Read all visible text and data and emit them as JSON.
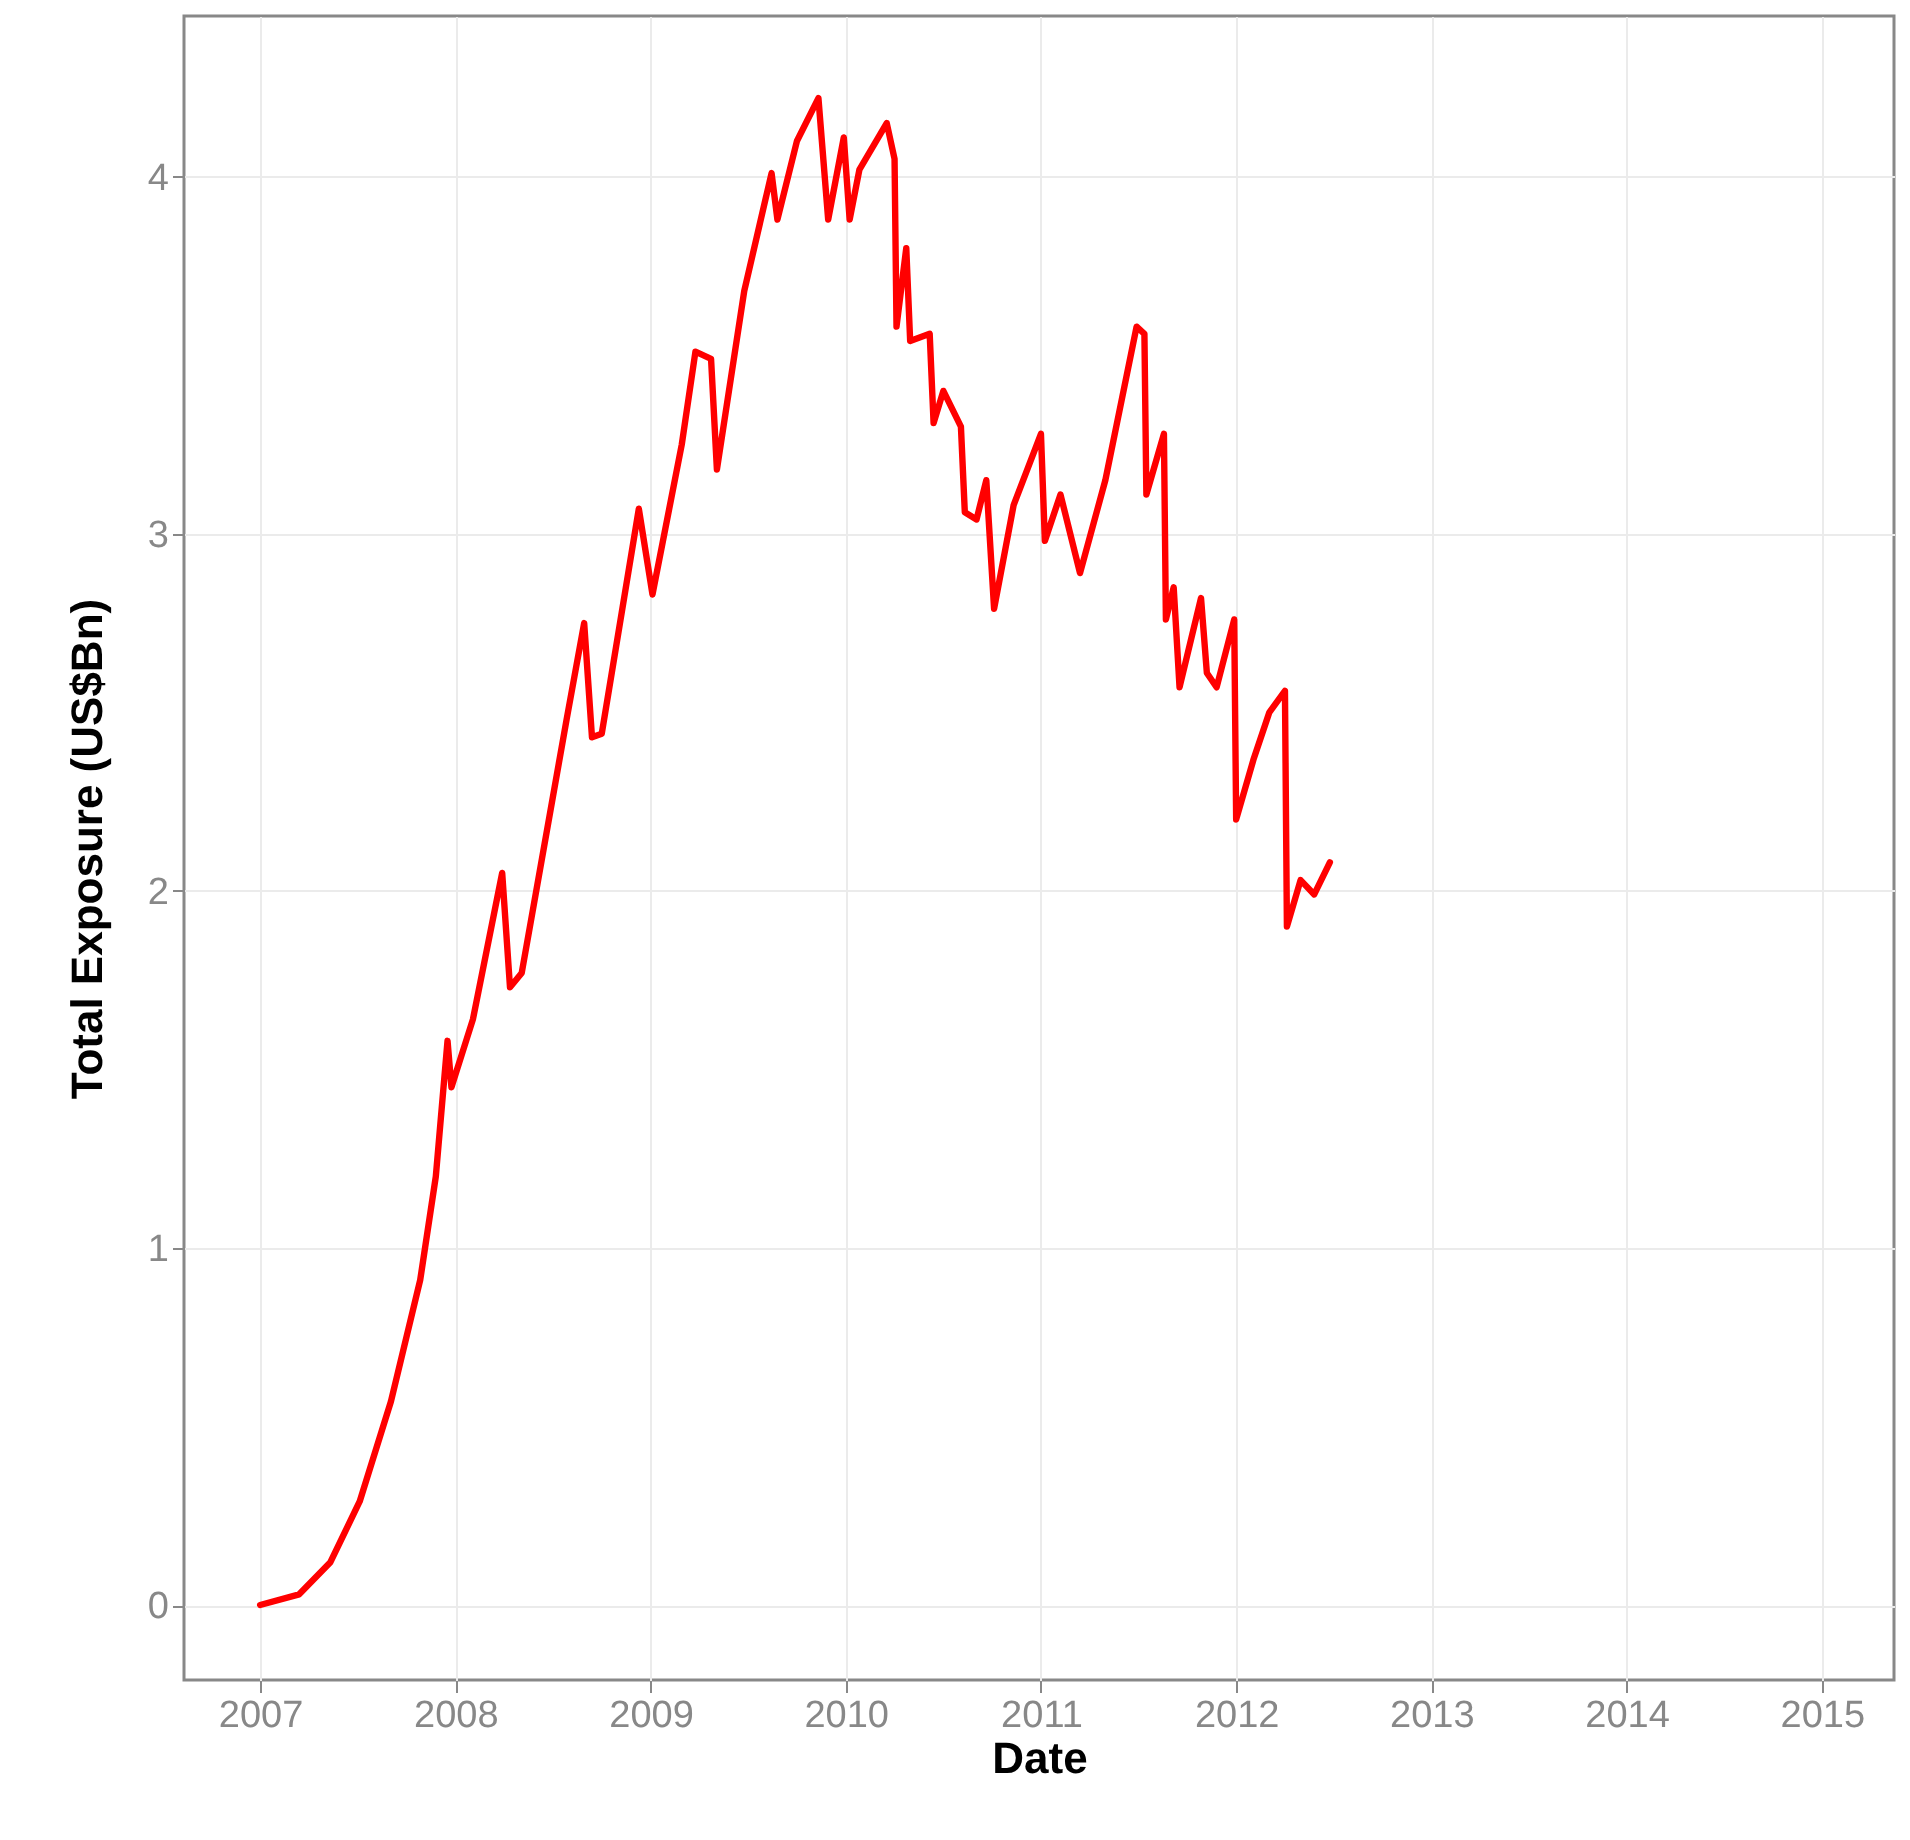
{
  "chart_data": {
    "type": "line",
    "xlabel": "Date",
    "ylabel": "Total Exposure (US$Bn)",
    "x": [
      2007.0,
      2007.2,
      2007.36,
      2007.51,
      2007.67,
      2007.82,
      2007.9,
      2007.96,
      2007.98,
      2008.09,
      2008.24,
      2008.28,
      2008.34,
      2008.57,
      2008.66,
      2008.7,
      2008.75,
      2008.94,
      2009.01,
      2009.16,
      2009.23,
      2009.31,
      2009.34,
      2009.48,
      2009.62,
      2009.65,
      2009.75,
      2009.86,
      2009.91,
      2009.99,
      2010.02,
      2010.07,
      2010.21,
      2010.25,
      2010.26,
      2010.31,
      2010.33,
      2010.43,
      2010.45,
      2010.5,
      2010.59,
      2010.61,
      2010.67,
      2010.72,
      2010.76,
      2010.86,
      2011.0,
      2011.02,
      2011.1,
      2011.2,
      2011.33,
      2011.49,
      2011.53,
      2011.54,
      2011.63,
      2011.64,
      2011.68,
      2011.71,
      2011.82,
      2011.85,
      2011.9,
      2011.99,
      2012.0,
      2012.09,
      2012.17,
      2012.25,
      2012.26,
      2012.33,
      2012.4,
      2012.48
    ],
    "series": [
      {
        "color": "#ff0000",
        "values": [
          0.0,
          0.03,
          0.12,
          0.29,
          0.57,
          0.91,
          1.2,
          1.58,
          1.45,
          1.64,
          2.05,
          1.73,
          1.77,
          2.48,
          2.75,
          2.43,
          2.44,
          3.07,
          2.83,
          3.25,
          3.51,
          3.49,
          3.18,
          3.68,
          4.01,
          3.88,
          4.1,
          4.22,
          3.88,
          4.11,
          3.88,
          4.02,
          4.15,
          4.05,
          3.58,
          3.8,
          3.54,
          3.56,
          3.31,
          3.4,
          3.3,
          3.06,
          3.04,
          3.15,
          2.79,
          3.08,
          3.28,
          2.98,
          3.11,
          2.89,
          3.15,
          3.58,
          3.56,
          3.11,
          3.28,
          2.76,
          2.85,
          2.57,
          2.82,
          2.61,
          2.57,
          2.76,
          2.2,
          2.37,
          2.5,
          2.56,
          1.9,
          2.03,
          1.99,
          2.08
        ]
      }
    ],
    "xlim": [
      2006.61,
      2015.37
    ],
    "xticks": [
      2007,
      2008,
      2009,
      2010,
      2011,
      2012,
      2013,
      2014,
      2015
    ],
    "ylim": [
      -0.21,
      4.45
    ],
    "yticks": [
      0,
      1,
      2,
      3,
      4
    ],
    "grid": true
  }
}
